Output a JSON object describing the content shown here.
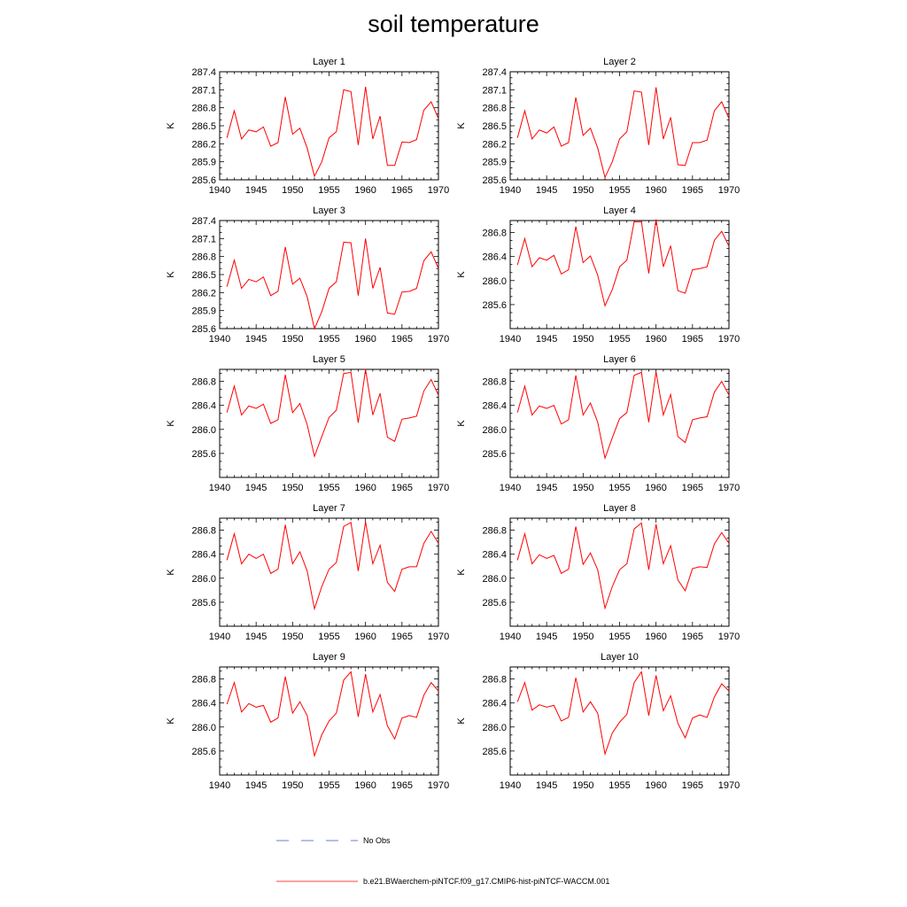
{
  "title": "soil temperature",
  "chart_data": {
    "type": "line",
    "xlabel": "",
    "ylabel": "K",
    "x": [
      1941,
      1942,
      1943,
      1944,
      1945,
      1946,
      1947,
      1948,
      1949,
      1950,
      1951,
      1952,
      1953,
      1954,
      1955,
      1956,
      1957,
      1958,
      1959,
      1960,
      1961,
      1962,
      1963,
      1964,
      1965,
      1966,
      1967,
      1968,
      1969,
      1970
    ],
    "xlim": [
      1940,
      1970
    ],
    "xticks": [
      1940,
      1945,
      1950,
      1955,
      1960,
      1965,
      1970
    ],
    "legend": [
      {
        "label": "No Obs",
        "color": "#3a56c4",
        "style": "dashed"
      },
      {
        "label": "b.e21.BWaerchem-piNTCF.f09_g17.CMIP6-hist-piNTCF-WACCM.001",
        "color": "#ff0000",
        "style": "solid"
      }
    ],
    "panels": [
      {
        "title": "Layer 1",
        "ylim": [
          285.6,
          287.4
        ],
        "yticks": [
          "285.6",
          "285.9",
          "286.2",
          "286.5",
          "286.8",
          "287.1",
          "287.4"
        ],
        "series": [
          {
            "values": [
              286.3,
              286.75,
              286.28,
              286.43,
              286.4,
              286.48,
              286.16,
              286.22,
              286.98,
              286.36,
              286.46,
              286.13,
              285.66,
              285.9,
              286.3,
              286.4,
              287.1,
              287.07,
              286.18,
              287.15,
              286.28,
              286.66,
              285.84,
              285.84,
              286.23,
              286.22,
              286.27,
              286.76,
              286.9,
              286.62
            ]
          }
        ]
      },
      {
        "title": "Layer 2",
        "ylim": [
          285.6,
          287.4
        ],
        "yticks": [
          "285.6",
          "285.9",
          "286.2",
          "286.5",
          "286.8",
          "287.1",
          "287.4"
        ],
        "series": [
          {
            "values": [
              286.3,
              286.75,
              286.28,
              286.43,
              286.38,
              286.48,
              286.16,
              286.22,
              286.97,
              286.34,
              286.46,
              286.13,
              285.64,
              285.9,
              286.28,
              286.4,
              287.08,
              287.06,
              286.18,
              287.14,
              286.28,
              286.64,
              285.85,
              285.84,
              286.22,
              286.22,
              286.26,
              286.75,
              286.9,
              286.62
            ]
          }
        ]
      },
      {
        "title": "Layer 3",
        "ylim": [
          285.6,
          287.4
        ],
        "yticks": [
          "285.6",
          "285.9",
          "286.2",
          "286.5",
          "286.8",
          "287.1",
          "287.4"
        ],
        "series": [
          {
            "values": [
              286.3,
              286.74,
              286.27,
              286.42,
              286.38,
              286.46,
              286.15,
              286.22,
              286.96,
              286.34,
              286.44,
              286.13,
              285.6,
              285.88,
              286.27,
              286.38,
              287.04,
              287.03,
              286.15,
              287.1,
              286.27,
              286.62,
              285.86,
              285.84,
              286.21,
              286.22,
              286.27,
              286.73,
              286.88,
              286.6
            ]
          }
        ]
      },
      {
        "title": "Layer 4",
        "ylim": [
          285.2,
          287.0
        ],
        "yticks": [
          "285.6",
          "286.0",
          "286.4",
          "286.8"
        ],
        "series": [
          {
            "values": [
              286.26,
              286.7,
              286.23,
              286.38,
              286.34,
              286.42,
              286.11,
              286.18,
              286.9,
              286.3,
              286.41,
              286.09,
              285.58,
              285.85,
              286.23,
              286.34,
              286.98,
              286.98,
              286.12,
              287.02,
              286.23,
              286.58,
              285.83,
              285.79,
              286.18,
              286.2,
              286.23,
              286.67,
              286.82,
              286.57
            ]
          }
        ]
      },
      {
        "title": "Layer 5",
        "ylim": [
          285.2,
          287.0
        ],
        "yticks": [
          "285.6",
          "286.0",
          "286.4",
          "286.8"
        ],
        "series": [
          {
            "values": [
              286.28,
              286.72,
              286.24,
              286.39,
              286.35,
              286.42,
              286.1,
              286.16,
              286.91,
              286.28,
              286.43,
              286.08,
              285.55,
              285.88,
              286.2,
              286.32,
              286.93,
              286.95,
              286.11,
              287.0,
              286.24,
              286.6,
              285.87,
              285.8,
              286.17,
              286.19,
              286.22,
              286.64,
              286.83,
              286.57
            ]
          }
        ]
      },
      {
        "title": "Layer 6",
        "ylim": [
          285.2,
          287.0
        ],
        "yticks": [
          "285.6",
          "286.0",
          "286.4",
          "286.8"
        ],
        "series": [
          {
            "values": [
              286.28,
              286.72,
              286.24,
              286.39,
              286.35,
              286.4,
              286.09,
              286.16,
              286.9,
              286.24,
              286.44,
              286.12,
              285.52,
              285.86,
              286.18,
              286.28,
              286.9,
              286.95,
              286.12,
              286.96,
              286.24,
              286.58,
              285.88,
              285.78,
              286.16,
              286.19,
              286.21,
              286.62,
              286.8,
              286.57
            ]
          }
        ]
      },
      {
        "title": "Layer 7",
        "ylim": [
          285.2,
          287.0
        ],
        "yticks": [
          "285.6",
          "286.0",
          "286.4",
          "286.8"
        ],
        "series": [
          {
            "values": [
              286.3,
              286.74,
              286.24,
              286.4,
              286.33,
              286.4,
              286.08,
              286.15,
              286.89,
              286.24,
              286.44,
              286.12,
              285.49,
              285.86,
              286.15,
              286.26,
              286.86,
              286.93,
              286.12,
              286.94,
              286.24,
              286.55,
              285.93,
              285.78,
              286.15,
              286.19,
              286.19,
              286.58,
              286.78,
              286.58
            ]
          }
        ]
      },
      {
        "title": "Layer 8",
        "ylim": [
          285.2,
          287.0
        ],
        "yticks": [
          "285.6",
          "286.0",
          "286.4",
          "286.8"
        ],
        "series": [
          {
            "values": [
              286.3,
              286.74,
              286.24,
              286.39,
              286.33,
              286.38,
              286.08,
              286.15,
              286.86,
              286.23,
              286.42,
              286.14,
              285.5,
              285.86,
              286.14,
              286.24,
              286.82,
              286.92,
              286.14,
              286.9,
              286.24,
              286.54,
              285.97,
              285.79,
              286.16,
              286.19,
              286.18,
              286.57,
              286.76,
              286.58
            ]
          }
        ]
      },
      {
        "title": "Layer 9",
        "ylim": [
          285.2,
          287.0
        ],
        "yticks": [
          "285.6",
          "286.0",
          "286.4",
          "286.8"
        ],
        "series": [
          {
            "values": [
              286.38,
              286.74,
              286.25,
              286.39,
              286.33,
              286.36,
              286.08,
              286.15,
              286.84,
              286.23,
              286.42,
              286.19,
              285.52,
              285.87,
              286.1,
              286.23,
              286.78,
              286.92,
              286.17,
              286.88,
              286.25,
              286.54,
              286.02,
              285.8,
              286.15,
              286.19,
              286.16,
              286.53,
              286.74,
              286.6
            ]
          }
        ]
      },
      {
        "title": "Layer 10",
        "ylim": [
          285.2,
          287.0
        ],
        "yticks": [
          "285.6",
          "286.0",
          "286.4",
          "286.8"
        ],
        "series": [
          {
            "values": [
              286.42,
              286.74,
              286.28,
              286.37,
              286.33,
              286.36,
              286.1,
              286.16,
              286.82,
              286.25,
              286.42,
              286.23,
              285.55,
              285.9,
              286.08,
              286.21,
              286.74,
              286.92,
              286.19,
              286.86,
              286.27,
              286.52,
              286.06,
              285.82,
              286.15,
              286.2,
              286.16,
              286.5,
              286.72,
              286.6
            ]
          }
        ]
      }
    ]
  }
}
